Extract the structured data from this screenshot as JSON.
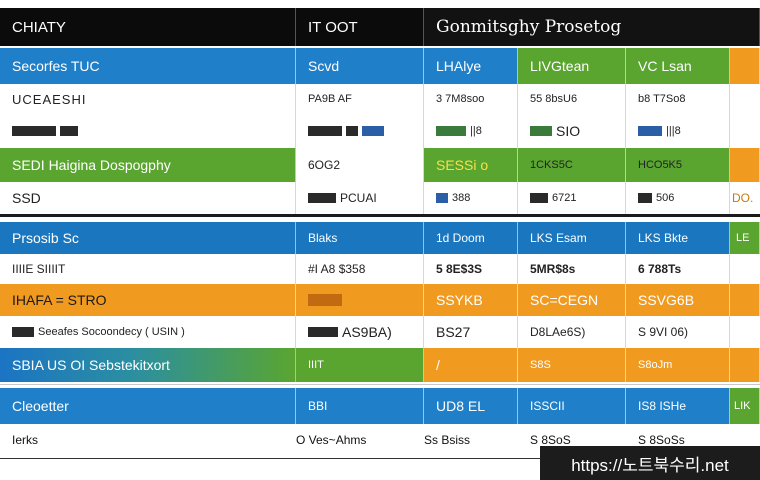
{
  "header": {
    "col0": "CHIATY",
    "col1": "IT OOT",
    "title": "Gonmitsghy Prosetog"
  },
  "rows": [
    {
      "c0": "Secorfes TUC",
      "c1": "Scvd",
      "c2": "LHAlye",
      "c3": "LIVGtean",
      "c4": "VC Lsan"
    },
    {
      "c0": "UCEAESHI",
      "c1": "PA9B AF",
      "c2": "3 7M8soo",
      "c3": "55 8bsU6",
      "c4": "b8 T7So8"
    },
    {
      "c0": "",
      "c1": "",
      "c2": "||8",
      "c3": "SIO",
      "c4": "|||8"
    },
    {
      "c0": "SEDI Haigina Dospogphy",
      "c1": "6OG2",
      "c2": "SESSi o",
      "c3": "1CKS5C",
      "c4": "HCO5K5"
    },
    {
      "c0": "SSD",
      "c1": "PCUAI",
      "c2": "388",
      "c3": "6721",
      "c4": "506"
    },
    {
      "c0": "Prsosib Sc",
      "c1": "Blaks",
      "c2": "1d Doom",
      "c3": "LKS Esam",
      "c4": "LKS Bkte"
    },
    {
      "c0": "IIIIE SIIIIT",
      "c1": "#I A8 $358",
      "c2": "5 8E$3S",
      "c3": "5MR$8s",
      "c4": "6 788Ts"
    },
    {
      "c0": "IHAFA = STRO",
      "c1": "",
      "c2": "SSYKB",
      "c3": "SC=CEGN",
      "c4": "SSVG6B"
    },
    {
      "c0": "Seeafes Socoondecy ( USIN )",
      "c1": "AS9BA)",
      "c2": "BS27",
      "c3": "D8LAe6S)",
      "c4": "S 9VI 06)"
    },
    {
      "c0": "SBIA US OI Sebstekitxort",
      "c1": "IIIT",
      "c2": "/",
      "c3": "S8S",
      "c4": "S8oJm"
    },
    {
      "c0": "Cleoetter",
      "c1": "BBI",
      "c2": "UD8 EL",
      "c3": "ISSCII",
      "c4": "IS8 ISHe"
    }
  ],
  "edge": {
    "r0": "",
    "r3": "",
    "r4": "DO.",
    "r5": "LE",
    "r9": "",
    "r10": "LIK"
  },
  "footer": {
    "c0": "Ierks",
    "c1": "O Ves~Ahms",
    "c2": "Ss Bsiss",
    "c3": "S 8SoS",
    "c4": "S 8SoSs"
  },
  "watermark": "https://노트북수리.net"
}
